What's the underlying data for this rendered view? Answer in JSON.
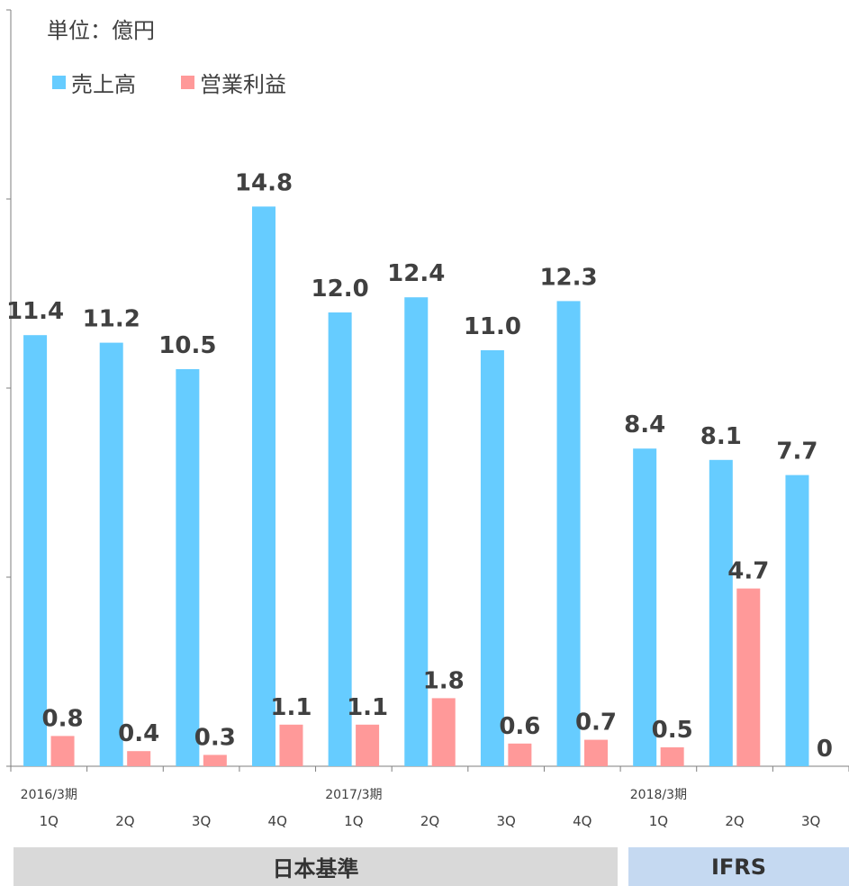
{
  "unit_label": "単位：億円",
  "chart_data": {
    "type": "bar",
    "categories": [
      "1Q",
      "2Q",
      "3Q",
      "4Q",
      "1Q",
      "2Q",
      "3Q",
      "4Q",
      "1Q",
      "2Q",
      "3Q"
    ],
    "period_labels": [
      {
        "index": 0,
        "label": "2016/3期"
      },
      {
        "index": 4,
        "label": "2017/3期"
      },
      {
        "index": 8,
        "label": "2018/3期"
      }
    ],
    "series": [
      {
        "name": "売上高",
        "color": "#66ccff",
        "values": [
          11.4,
          11.2,
          10.5,
          14.8,
          12.0,
          12.4,
          11.0,
          12.3,
          8.4,
          8.1,
          7.7
        ],
        "labels": [
          "11.4",
          "11.2",
          "10.5",
          "14.8",
          "12.0",
          "12.4",
          "11.0",
          "12.3",
          "8.4",
          "8.1",
          "7.7"
        ]
      },
      {
        "name": "営業利益",
        "color": "#ff9999",
        "values": [
          0.8,
          0.4,
          0.3,
          1.1,
          1.1,
          1.8,
          0.6,
          0.7,
          0.5,
          4.7,
          0
        ],
        "labels": [
          "0.8",
          "0.4",
          "0.3",
          "1.1",
          "1.1",
          "1.8",
          "0.6",
          "0.7",
          "0.5",
          "4.7",
          "0"
        ]
      }
    ],
    "ylim": [
      0,
      20
    ],
    "grid": false,
    "legend_position": "top-left"
  },
  "standards": [
    {
      "label": "日本基準",
      "span": [
        0,
        7
      ]
    },
    {
      "label": "IFRS",
      "span": [
        8,
        10
      ]
    }
  ]
}
